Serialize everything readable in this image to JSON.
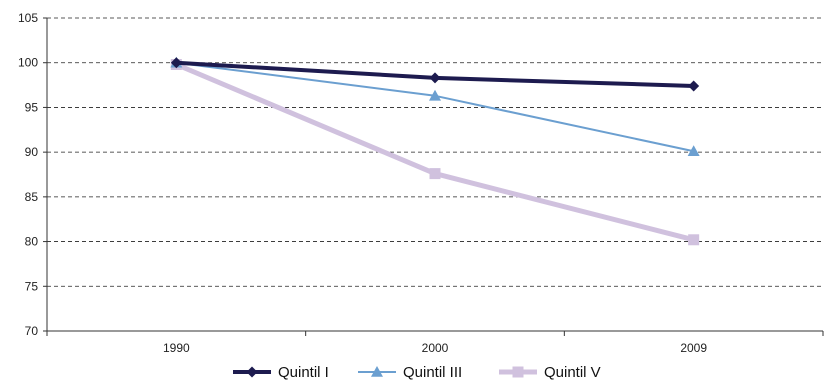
{
  "chart_data": {
    "type": "line",
    "categories": [
      "1990",
      "2000",
      "2009"
    ],
    "ylim": [
      70,
      105
    ],
    "yticks": [
      70,
      75,
      80,
      85,
      90,
      95,
      100,
      105
    ],
    "ytick_labels": [
      "70",
      "75",
      "80",
      "85",
      "90",
      "95",
      "100",
      "105"
    ],
    "grid": true,
    "legend_position": "bottom",
    "series": [
      {
        "name": "Quintil I",
        "values": [
          100,
          98.3,
          97.4
        ],
        "color": "#1d1b4f",
        "marker": "diamond"
      },
      {
        "name": "Quintil III",
        "values": [
          100,
          96.3,
          90.1
        ],
        "color": "#6b9fd0",
        "marker": "triangle"
      },
      {
        "name": "Quintil V",
        "values": [
          99.8,
          87.6,
          80.2
        ],
        "color": "#d0c1de",
        "marker": "square"
      }
    ]
  }
}
